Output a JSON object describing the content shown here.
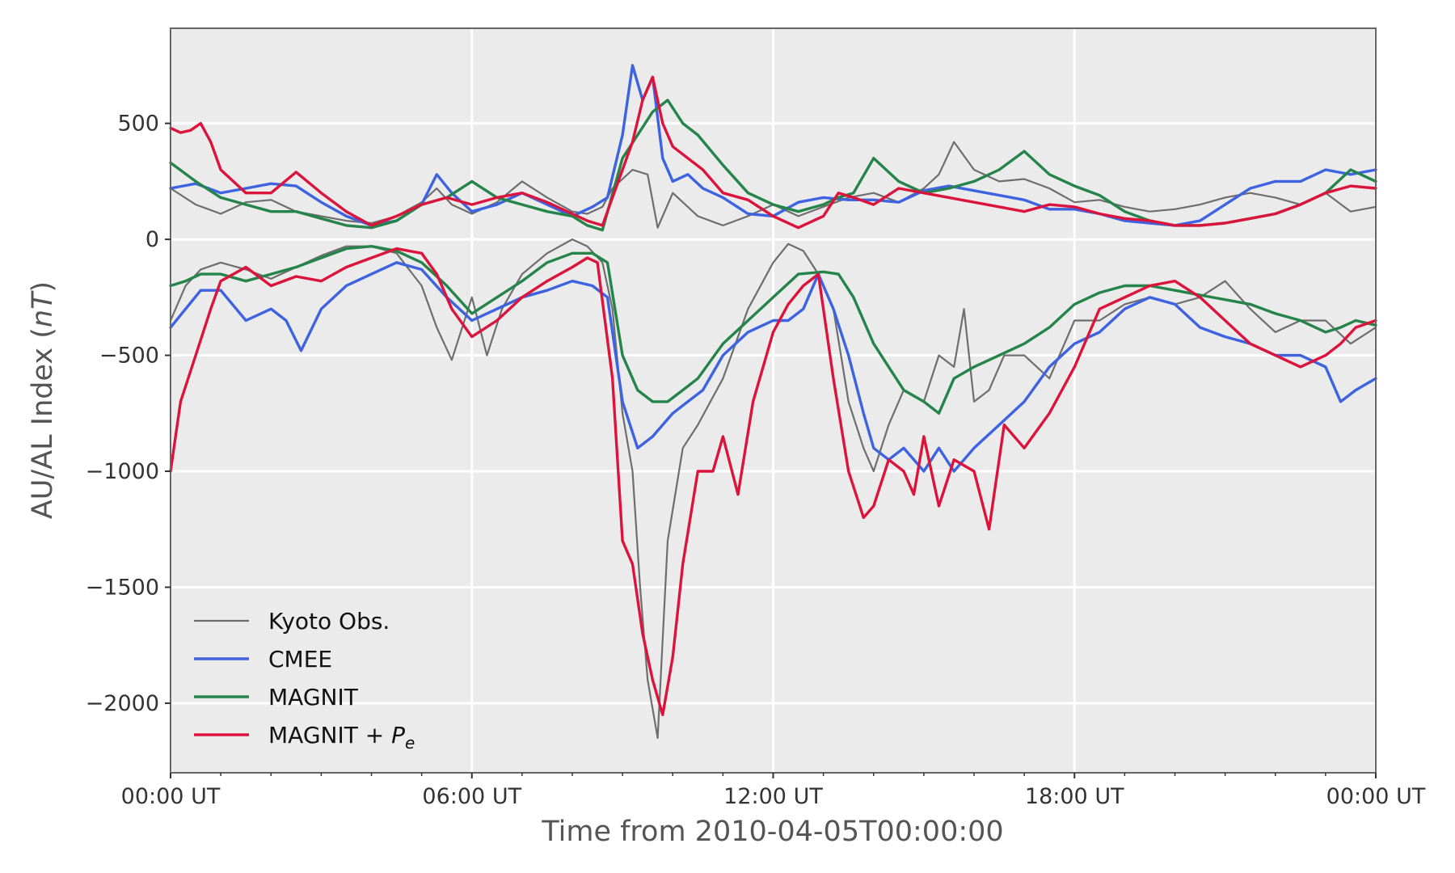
{
  "chart_data": {
    "type": "line",
    "xlabel": "Time from 2010-04-05T00:00:00",
    "ylabel": "AU/AL Index",
    "ylabel_unit": "nT",
    "x_unit": "hours",
    "xlim": [
      0,
      24
    ],
    "ylim": [
      -2300,
      910
    ],
    "x_ticks": [
      {
        "value": 0,
        "label": "00:00 UT"
      },
      {
        "value": 6,
        "label": "06:00 UT"
      },
      {
        "value": 12,
        "label": "12:00 UT"
      },
      {
        "value": 18,
        "label": "18:00 UT"
      },
      {
        "value": 24,
        "label": "00:00 UT"
      }
    ],
    "y_ticks": [
      {
        "value": 500,
        "label": "500"
      },
      {
        "value": 0,
        "label": "0"
      },
      {
        "value": -500,
        "label": "−500"
      },
      {
        "value": -1000,
        "label": "−1000"
      },
      {
        "value": -1500,
        "label": "−1500"
      },
      {
        "value": -2000,
        "label": "−2000"
      }
    ],
    "grid": true,
    "legend_position": "lower-left",
    "colors": {
      "plot_bg": "#ebebeb",
      "grid": "#ffffff",
      "frame": "#666666"
    },
    "series": [
      {
        "name": "Kyoto Obs.",
        "color": "#6e6e6e",
        "width": 2.2,
        "upper": {
          "x": [
            0,
            0.5,
            1,
            1.5,
            2,
            2.5,
            3,
            3.5,
            4,
            4.5,
            5,
            5.3,
            5.6,
            6,
            6.5,
            7,
            7.5,
            8,
            8.3,
            8.6,
            8.8,
            9,
            9.2,
            9.5,
            9.7,
            10,
            10.5,
            11,
            11.5,
            12,
            12.5,
            13,
            13.5,
            14,
            14.5,
            15,
            15.3,
            15.6,
            16,
            16.5,
            17,
            17.5,
            18,
            18.5,
            19,
            19.5,
            20,
            20.5,
            21,
            21.5,
            22,
            22.5,
            23,
            23.5,
            24
          ],
          "y": [
            220,
            150,
            110,
            160,
            170,
            120,
            100,
            80,
            70,
            100,
            160,
            220,
            150,
            110,
            160,
            250,
            180,
            120,
            110,
            140,
            220,
            260,
            300,
            280,
            50,
            200,
            100,
            60,
            100,
            150,
            100,
            140,
            180,
            200,
            160,
            220,
            280,
            420,
            300,
            250,
            260,
            220,
            160,
            170,
            140,
            120,
            130,
            150,
            180,
            200,
            180,
            150,
            200,
            120,
            140
          ]
        },
        "lower": {
          "x": [
            0,
            0.3,
            0.6,
            1,
            1.5,
            2,
            2.5,
            3,
            3.5,
            4,
            4.5,
            5,
            5.3,
            5.6,
            6,
            6.3,
            6.6,
            7,
            7.5,
            8,
            8.3,
            8.6,
            8.8,
            9,
            9.2,
            9.35,
            9.5,
            9.7,
            9.9,
            10.2,
            10.5,
            11,
            11.5,
            12,
            12.3,
            12.6,
            12.9,
            13.2,
            13.5,
            13.8,
            14,
            14.3,
            14.6,
            15,
            15.3,
            15.6,
            15.8,
            16,
            16.3,
            16.6,
            17,
            17.5,
            18,
            18.5,
            19,
            19.5,
            20,
            20.5,
            21,
            21.5,
            22,
            22.5,
            23,
            23.5,
            24
          ],
          "y": [
            -350,
            -200,
            -130,
            -100,
            -130,
            -170,
            -120,
            -70,
            -30,
            -30,
            -60,
            -200,
            -380,
            -520,
            -250,
            -500,
            -300,
            -150,
            -60,
            0,
            -30,
            -100,
            -300,
            -750,
            -1000,
            -1500,
            -1900,
            -2150,
            -1300,
            -900,
            -800,
            -600,
            -300,
            -100,
            -20,
            -50,
            -150,
            -300,
            -700,
            -900,
            -1000,
            -800,
            -650,
            -700,
            -500,
            -550,
            -300,
            -700,
            -650,
            -500,
            -500,
            -600,
            -350,
            -350,
            -280,
            -250,
            -280,
            -250,
            -180,
            -300,
            -400,
            -350,
            -350,
            -450,
            -380
          ]
        }
      },
      {
        "name": "CMEE",
        "color": "#3d63e0",
        "width": 3.4,
        "upper": {
          "x": [
            0,
            0.5,
            1,
            1.5,
            2,
            2.5,
            3,
            3.5,
            4,
            4.5,
            5,
            5.3,
            5.6,
            6,
            6.5,
            7,
            7.5,
            8,
            8.4,
            8.7,
            9,
            9.2,
            9.4,
            9.6,
            9.8,
            10,
            10.3,
            10.6,
            11,
            11.5,
            12,
            12.5,
            13,
            13.5,
            14,
            14.5,
            15,
            15.5,
            16,
            16.5,
            17,
            17.5,
            18,
            18.5,
            19,
            19.5,
            20,
            20.5,
            21,
            21.5,
            22,
            22.5,
            23,
            23.5,
            24
          ],
          "y": [
            220,
            240,
            200,
            220,
            240,
            230,
            160,
            100,
            60,
            80,
            150,
            280,
            200,
            120,
            150,
            200,
            150,
            100,
            140,
            180,
            450,
            750,
            600,
            700,
            350,
            250,
            280,
            220,
            180,
            110,
            100,
            160,
            180,
            170,
            170,
            160,
            210,
            230,
            210,
            190,
            170,
            130,
            130,
            110,
            80,
            70,
            60,
            80,
            150,
            220,
            250,
            250,
            300,
            280,
            300
          ]
        },
        "lower": {
          "x": [
            0,
            0.3,
            0.6,
            1,
            1.5,
            2,
            2.3,
            2.6,
            3,
            3.5,
            4,
            4.5,
            5,
            5.5,
            6,
            6.5,
            7,
            7.5,
            8,
            8.4,
            8.7,
            9,
            9.3,
            9.6,
            9.8,
            10,
            10.3,
            10.6,
            11,
            11.5,
            12,
            12.3,
            12.6,
            12.9,
            13.2,
            13.5,
            13.8,
            14,
            14.3,
            14.6,
            15,
            15.3,
            15.6,
            16,
            16.5,
            17,
            17.5,
            18,
            18.5,
            19,
            19.5,
            20,
            20.5,
            21,
            21.5,
            22,
            22.5,
            23,
            23.3,
            23.6,
            24
          ],
          "y": [
            -380,
            -300,
            -220,
            -220,
            -350,
            -300,
            -350,
            -480,
            -300,
            -200,
            -150,
            -100,
            -130,
            -250,
            -350,
            -300,
            -250,
            -220,
            -180,
            -200,
            -250,
            -700,
            -900,
            -850,
            -800,
            -750,
            -700,
            -650,
            -500,
            -400,
            -350,
            -350,
            -300,
            -150,
            -300,
            -500,
            -750,
            -900,
            -950,
            -900,
            -1000,
            -900,
            -1000,
            -900,
            -800,
            -700,
            -550,
            -450,
            -400,
            -300,
            -250,
            -280,
            -380,
            -420,
            -450,
            -500,
            -500,
            -550,
            -700,
            -650,
            -600
          ]
        }
      },
      {
        "name": "MAGNIT",
        "color": "#25844a",
        "width": 3.4,
        "upper": {
          "x": [
            0,
            0.5,
            1,
            1.5,
            2,
            2.5,
            3,
            3.5,
            4,
            4.5,
            5,
            5.5,
            6,
            6.5,
            7,
            7.5,
            8,
            8.3,
            8.6,
            9,
            9.3,
            9.6,
            9.9,
            10.2,
            10.5,
            11,
            11.5,
            12,
            12.5,
            13,
            13.3,
            13.6,
            14,
            14.5,
            15,
            15.5,
            16,
            16.5,
            17,
            17.5,
            18,
            18.5,
            19,
            19.5,
            20,
            20.5,
            21,
            21.5,
            22,
            22.5,
            23,
            23.5,
            24
          ],
          "y": [
            330,
            250,
            180,
            150,
            120,
            120,
            90,
            60,
            50,
            80,
            150,
            180,
            250,
            180,
            150,
            120,
            100,
            60,
            40,
            350,
            450,
            550,
            600,
            500,
            450,
            320,
            200,
            150,
            120,
            150,
            180,
            200,
            350,
            250,
            200,
            220,
            250,
            300,
            380,
            280,
            230,
            190,
            120,
            80,
            60,
            60,
            70,
            90,
            110,
            150,
            200,
            300,
            250
          ]
        },
        "lower": {
          "x": [
            0,
            0.3,
            0.6,
            1,
            1.5,
            2,
            2.5,
            3,
            3.5,
            4,
            4.5,
            5,
            5.5,
            6,
            6.5,
            7,
            7.5,
            8,
            8.4,
            8.7,
            9,
            9.3,
            9.6,
            9.9,
            10.2,
            10.5,
            11,
            11.5,
            12,
            12.5,
            13,
            13.3,
            13.6,
            14,
            14.3,
            14.6,
            15,
            15.3,
            15.6,
            16,
            16.5,
            17,
            17.5,
            18,
            18.5,
            19,
            19.5,
            20,
            20.5,
            21,
            21.5,
            22,
            22.5,
            23,
            23.3,
            23.6,
            24
          ],
          "y": [
            -200,
            -180,
            -150,
            -150,
            -180,
            -150,
            -120,
            -80,
            -40,
            -30,
            -50,
            -100,
            -200,
            -320,
            -250,
            -180,
            -100,
            -60,
            -60,
            -100,
            -500,
            -650,
            -700,
            -700,
            -650,
            -600,
            -450,
            -350,
            -250,
            -150,
            -140,
            -150,
            -250,
            -450,
            -550,
            -650,
            -700,
            -750,
            -600,
            -550,
            -500,
            -450,
            -380,
            -280,
            -230,
            -200,
            -200,
            -220,
            -240,
            -260,
            -280,
            -320,
            -350,
            -400,
            -380,
            -350,
            -370
          ]
        }
      },
      {
        "name": "MAGNIT + ",
        "name_sub": "e",
        "name_italic": "P",
        "color": "#dc143c",
        "width": 3.4,
        "upper": {
          "x": [
            0,
            0.2,
            0.4,
            0.6,
            0.8,
            1,
            1.5,
            2,
            2.5,
            3,
            3.5,
            4,
            4.5,
            5,
            5.5,
            6,
            6.5,
            7,
            7.5,
            8,
            8.3,
            8.6,
            9,
            9.2,
            9.4,
            9.6,
            9.8,
            10,
            10.3,
            10.6,
            11,
            11.5,
            12,
            12.5,
            13,
            13.3,
            13.6,
            14,
            14.5,
            15,
            15.5,
            16,
            16.5,
            17,
            17.5,
            18,
            18.5,
            19,
            19.5,
            20,
            20.5,
            21,
            21.5,
            22,
            22.5,
            23,
            23.5,
            24
          ],
          "y": [
            480,
            460,
            470,
            500,
            420,
            300,
            200,
            200,
            290,
            200,
            120,
            60,
            100,
            150,
            180,
            150,
            180,
            200,
            160,
            110,
            80,
            60,
            300,
            420,
            600,
            700,
            500,
            400,
            350,
            300,
            200,
            170,
            100,
            50,
            100,
            200,
            180,
            150,
            220,
            200,
            180,
            160,
            140,
            120,
            150,
            140,
            110,
            90,
            80,
            60,
            60,
            70,
            90,
            110,
            150,
            200,
            230,
            220
          ]
        },
        "lower": {
          "x": [
            0,
            0.2,
            0.5,
            0.8,
            1,
            1.5,
            2,
            2.5,
            3,
            3.5,
            4,
            4.5,
            5,
            5.3,
            5.6,
            6,
            6.5,
            7,
            7.5,
            8,
            8.3,
            8.5,
            8.8,
            9,
            9.2,
            9.4,
            9.6,
            9.8,
            10,
            10.2,
            10.5,
            10.8,
            11,
            11.3,
            11.6,
            12,
            12.3,
            12.6,
            12.9,
            13.2,
            13.5,
            13.8,
            14,
            14.3,
            14.6,
            14.8,
            15,
            15.3,
            15.6,
            16,
            16.3,
            16.6,
            17,
            17.5,
            18,
            18.5,
            19,
            19.5,
            20,
            20.5,
            21,
            21.5,
            22,
            22.5,
            23,
            23.3,
            23.6,
            24
          ],
          "y": [
            -1000,
            -700,
            -500,
            -300,
            -180,
            -120,
            -200,
            -160,
            -180,
            -120,
            -80,
            -40,
            -60,
            -150,
            -300,
            -420,
            -350,
            -250,
            -180,
            -120,
            -80,
            -100,
            -600,
            -1300,
            -1400,
            -1700,
            -1900,
            -2050,
            -1800,
            -1400,
            -1000,
            -1000,
            -850,
            -1100,
            -700,
            -400,
            -280,
            -200,
            -150,
            -600,
            -1000,
            -1200,
            -1150,
            -950,
            -1000,
            -1100,
            -850,
            -1150,
            -950,
            -1000,
            -1250,
            -800,
            -900,
            -750,
            -550,
            -300,
            -250,
            -200,
            -180,
            -250,
            -350,
            -450,
            -500,
            -550,
            -500,
            -450,
            -380,
            -350
          ]
        }
      }
    ]
  }
}
